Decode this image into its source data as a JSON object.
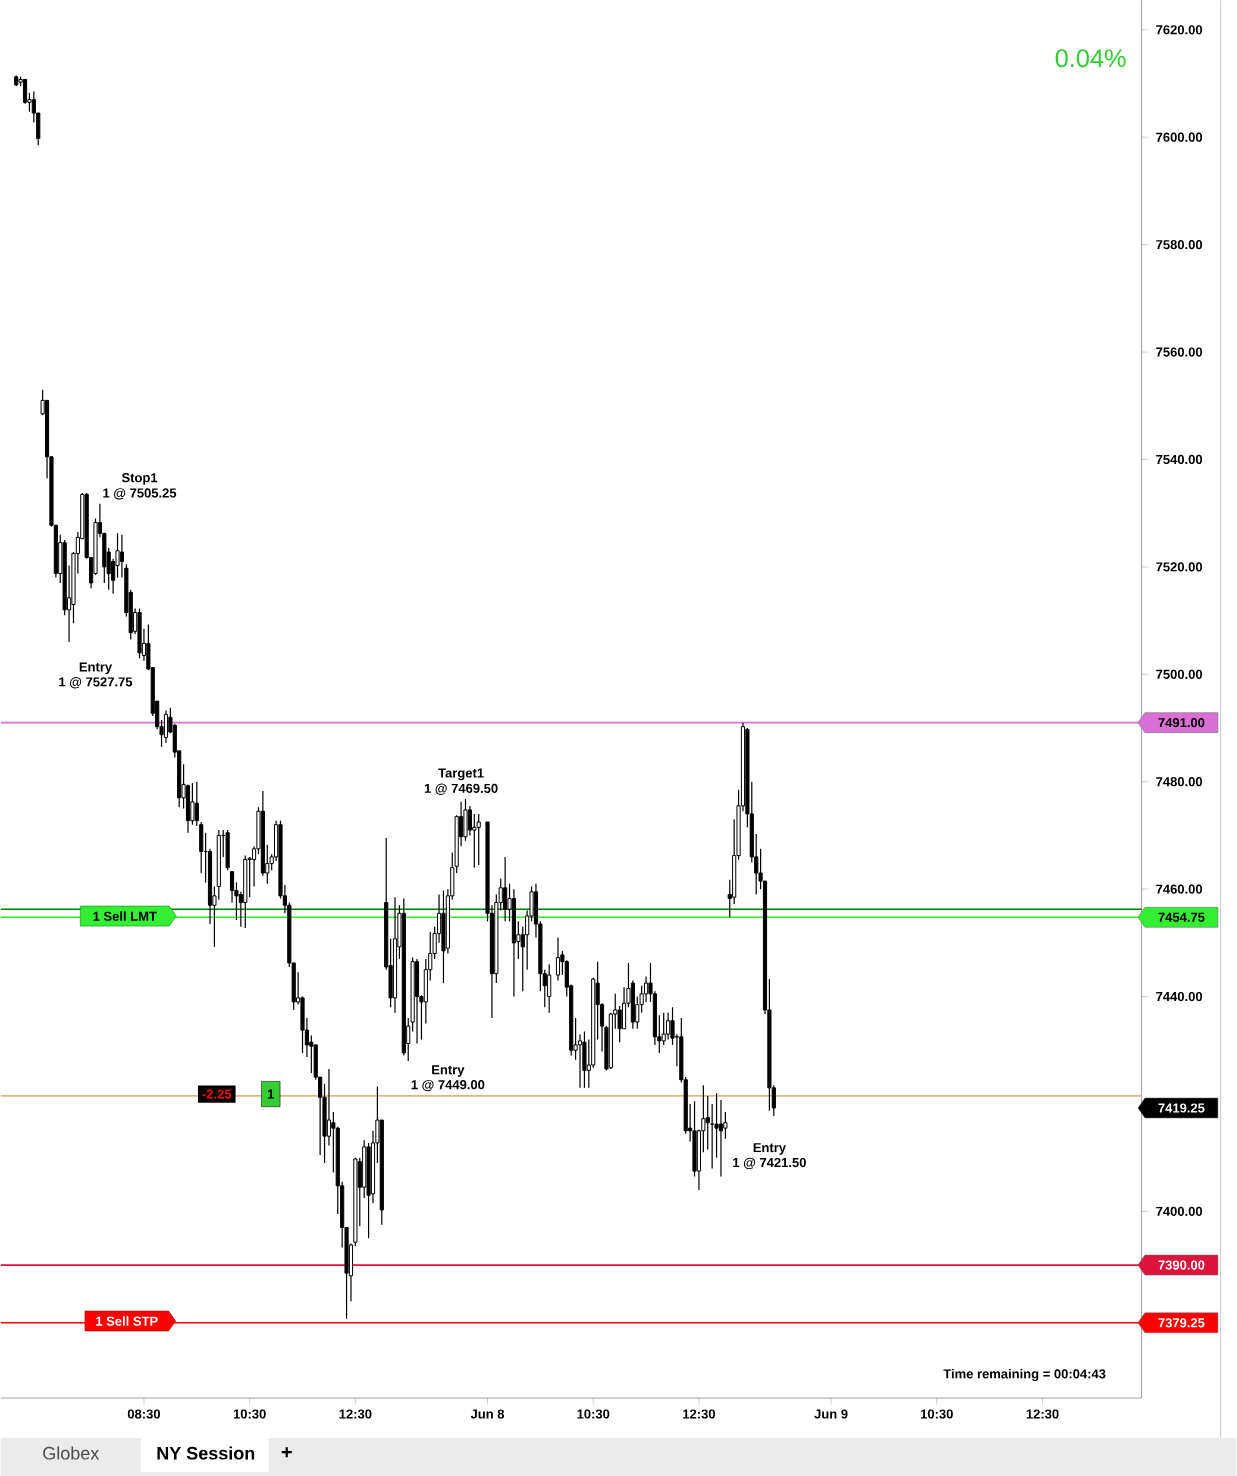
{
  "chart_data": {
    "type": "candlestick",
    "color": "#000000",
    "categories": [
      null,
      null,
      null,
      null,
      null,
      null,
      null,
      null,
      null,
      null,
      null,
      null,
      null,
      null,
      null,
      null,
      null,
      null,
      null,
      null,
      null,
      null,
      null,
      null,
      null,
      null,
      null,
      null,
      null,
      null,
      null,
      null,
      "08:30",
      null,
      null,
      null,
      null,
      null,
      null,
      null,
      null,
      null,
      null,
      null,
      null,
      null,
      null,
      null,
      null,
      null,
      null,
      null,
      null,
      null,
      null,
      null,
      "10:30",
      null,
      null,
      null,
      null,
      null,
      null,
      null,
      null,
      null,
      null,
      null,
      null,
      null,
      null,
      null,
      null,
      null,
      null,
      null,
      null,
      null,
      null,
      null,
      "12:30",
      null,
      null,
      null,
      null,
      null,
      null,
      null,
      null,
      null,
      null,
      null,
      null,
      null,
      null,
      null,
      null,
      null,
      null,
      null,
      null,
      null,
      null,
      null,
      null,
      null,
      null,
      null,
      null,
      null,
      "Jun 8",
      null,
      null,
      null,
      null,
      null,
      null,
      null,
      null,
      null,
      null,
      null,
      null,
      null,
      null,
      null,
      null,
      null,
      null,
      null,
      null,
      null,
      null,
      null,
      "10:30",
      null,
      null,
      null,
      null,
      null,
      null,
      null,
      null,
      null,
      null,
      null,
      null,
      null,
      null,
      null,
      null,
      null,
      null,
      null,
      null,
      null,
      null,
      null,
      "12:30",
      null,
      null,
      null,
      null,
      null,
      null,
      null,
      null,
      null,
      null,
      null,
      null,
      null,
      null,
      null,
      null,
      null,
      null,
      null,
      null,
      null,
      null,
      null,
      null,
      null,
      null,
      null,
      null,
      null,
      "Jun 9",
      null,
      null,
      null,
      null,
      null,
      null,
      null,
      null,
      null,
      null,
      null,
      null,
      null,
      null,
      null,
      null,
      null,
      null,
      null,
      null,
      null,
      null,
      null,
      "10:30",
      null,
      null,
      null,
      null,
      null,
      null,
      null,
      null,
      null,
      null,
      null,
      null,
      null,
      null,
      null,
      null,
      null,
      null,
      null,
      null,
      null,
      null,
      null,
      "12:30",
      null,
      null,
      null,
      null,
      null,
      null,
      null,
      null,
      null,
      null,
      null,
      null,
      null,
      null,
      null,
      null,
      null,
      null,
      null,
      null,
      null,
      null
    ],
    "ohlc": [
      null,
      null,
      null,
      [
        7611.25,
        7611.5,
        7609.5,
        7609.75
      ],
      [
        7610.25,
        7611.25,
        7609.5,
        7610.75
      ],
      [
        7610.75,
        7610.75,
        7606.25,
        7606.5
      ],
      [
        7606.5,
        7608.25,
        7604.75,
        7607.0
      ],
      [
        7607.0,
        7608.5,
        7602.75,
        7604.5
      ],
      [
        7604.5,
        7604.5,
        7598.5,
        7599.75
      ],
      [
        7548.5,
        7553.0,
        7548.25,
        7551.0
      ],
      [
        7551.0,
        7551.0,
        7536.5,
        7540.5
      ],
      [
        7540.5,
        7540.5,
        7527.5,
        7527.75
      ],
      [
        7527.75,
        7527.75,
        7518.0,
        7518.75
      ],
      [
        7518.75,
        7526.0,
        7517.0,
        7524.5
      ],
      [
        7524.5,
        7525.0,
        7511.0,
        7512.0
      ],
      [
        7512.0,
        7520.25,
        7506.0,
        7514.25
      ],
      [
        7513.0,
        7522.75,
        7509.5,
        7522.5
      ],
      [
        7522.5,
        7526.5,
        7518.75,
        7525.5
      ],
      [
        7525.25,
        7533.75,
        7525.25,
        7533.5
      ],
      [
        7533.5,
        7533.75,
        7521.5,
        7521.75
      ],
      [
        7521.75,
        7521.75,
        7516.0,
        7517.0
      ],
      [
        7518.75,
        7529.0,
        7518.5,
        7528.25
      ],
      [
        7528.25,
        7531.75,
        7525.5,
        7526.25
      ],
      [
        7526.25,
        7526.25,
        7517.0,
        7520.0
      ],
      [
        7522.75,
        7523.5,
        7515.75,
        7518.75
      ],
      [
        7521.0,
        7521.5,
        7515.0,
        7517.5
      ],
      [
        7520.25,
        7526.25,
        7518.0,
        7523.0
      ],
      [
        7522.75,
        7526.0,
        7518.0,
        7521.0
      ],
      [
        7519.75,
        7520.5,
        7510.75,
        7511.5
      ],
      [
        7515.25,
        7515.75,
        7506.5,
        7507.75
      ],
      [
        7508.0,
        7512.25,
        7507.5,
        7511.5
      ],
      [
        7511.5,
        7512.25,
        7503.0,
        7504.0
      ],
      [
        7503.5,
        7508.5,
        7502.5,
        7505.75
      ],
      [
        7505.75,
        7509.25,
        7500.75,
        7501.0
      ],
      [
        7501.25,
        7501.25,
        7492.25,
        7492.75
      ],
      [
        7495.0,
        7495.0,
        7489.75,
        7490.25
      ],
      [
        7490.25,
        7491.5,
        7486.5,
        7488.75
      ],
      [
        7488.25,
        7493.25,
        7487.25,
        7492.5
      ],
      [
        7492.0,
        7493.75,
        7489.0,
        7489.25
      ],
      [
        7490.5,
        7490.75,
        7484.5,
        7485.5
      ],
      [
        7485.75,
        7485.75,
        7475.25,
        7477.0
      ],
      [
        7477.0,
        7483.25,
        7475.0,
        7479.5
      ],
      [
        7479.25,
        7479.5,
        7470.5,
        7472.75
      ],
      [
        7472.75,
        7479.75,
        7472.0,
        7476.25
      ],
      [
        7476.0,
        7480.0,
        7471.75,
        7472.75
      ],
      [
        7472.0,
        7472.5,
        7463.0,
        7467.0
      ],
      [
        7467.0,
        7470.5,
        7461.25,
        7467.0
      ],
      [
        7467.0,
        7467.5,
        7453.5,
        7457.0
      ],
      [
        7457.0,
        7460.5,
        7449.25,
        7458.75
      ],
      [
        7460.5,
        7471.0,
        7458.0,
        7470.0
      ],
      [
        7470.0,
        7471.0,
        7466.0,
        7470.0
      ],
      [
        7470.5,
        7471.0,
        7463.5,
        7464.0
      ],
      [
        7463.25,
        7463.25,
        7457.5,
        7459.75
      ],
      [
        7459.75,
        7461.25,
        7454.25,
        7458.75
      ],
      [
        7459.0,
        7459.5,
        7453.0,
        7457.5
      ],
      [
        7457.5,
        7466.25,
        7452.75,
        7465.5
      ],
      [
        7465.5,
        7466.0,
        7458.5,
        7465.75
      ],
      [
        7465.5,
        7468.0,
        7460.5,
        7467.5
      ],
      [
        7467.5,
        7475.25,
        7466.5,
        7474.5
      ],
      [
        7474.5,
        7478.25,
        7462.5,
        7463.0
      ],
      [
        7463.0,
        7468.25,
        7461.0,
        7464.75
      ],
      [
        7464.75,
        7466.5,
        7463.5,
        7466.0
      ],
      [
        7466.0,
        7472.75,
        7465.25,
        7472.0
      ],
      [
        7472.0,
        7472.75,
        7458.25,
        7458.75
      ],
      [
        7458.75,
        7460.75,
        7455.5,
        7457.0
      ],
      [
        7457.0,
        7457.5,
        7445.5,
        7446.25
      ],
      [
        7446.25,
        7446.25,
        7437.5,
        7439.0
      ],
      [
        7439.0,
        7444.5,
        7438.5,
        7439.75
      ],
      [
        7439.75,
        7440.0,
        7429.5,
        7433.75
      ],
      [
        7433.75,
        7436.0,
        7428.75,
        7431.0
      ],
      [
        7431.5,
        7432.75,
        7425.75,
        7430.75
      ],
      [
        7431.0,
        7431.0,
        7424.5,
        7425.0
      ],
      [
        7425.0,
        7425.0,
        7410.5,
        7421.25
      ],
      [
        7421.25,
        7423.75,
        7409.0,
        7414.0
      ],
      [
        7414.0,
        7426.5,
        7412.25,
        7417.0
      ],
      [
        7416.5,
        7418.5,
        7407.25,
        7415.5
      ],
      [
        7415.5,
        7415.75,
        7399.5,
        7404.75
      ],
      [
        7404.75,
        7405.5,
        7393.25,
        7397.0
      ],
      [
        7397.0,
        7397.0,
        7380.0,
        7388.5
      ],
      [
        7388.0,
        7394.0,
        7383.25,
        7393.75
      ],
      [
        7394.25,
        7410.0,
        7393.5,
        7409.75
      ],
      [
        7409.25,
        7410.0,
        7397.25,
        7404.5
      ],
      [
        7404.5,
        7413.25,
        7402.5,
        7412.0
      ],
      [
        7412.0,
        7412.75,
        7395.0,
        7403.0
      ],
      [
        7403.25,
        7415.0,
        7401.5,
        7412.75
      ],
      [
        7412.75,
        7423.25,
        7409.0,
        7417.0
      ],
      [
        7417.0,
        7417.0,
        7397.5,
        7400.25
      ],
      [
        7457.5,
        7469.5,
        7445.0,
        7445.5
      ],
      [
        7445.75,
        7450.75,
        7438.0,
        7439.75
      ],
      [
        7439.75,
        7458.5,
        7437.0,
        7450.75
      ],
      [
        7449.25,
        7457.0,
        7447.0,
        7455.5
      ],
      [
        7455.5,
        7458.25,
        7429.0,
        7429.5
      ],
      [
        7431.25,
        7436.0,
        7428.0,
        7434.5
      ],
      [
        7435.25,
        7447.25,
        7433.5,
        7446.5
      ],
      [
        7446.5,
        7447.0,
        7431.25,
        7440.0
      ],
      [
        7440.0,
        7440.25,
        7432.0,
        7439.0
      ],
      [
        7439.0,
        7447.0,
        7435.0,
        7445.0
      ],
      [
        7445.0,
        7452.0,
        7443.0,
        7448.0
      ],
      [
        7448.0,
        7453.0,
        7447.0,
        7451.75
      ],
      [
        7451.75,
        7459.0,
        7450.0,
        7455.5
      ],
      [
        7455.5,
        7459.75,
        7442.5,
        7448.5
      ],
      [
        7449.0,
        7460.0,
        7448.0,
        7458.75
      ],
      [
        7458.75,
        7466.75,
        7458.0,
        7464.0
      ],
      [
        7464.25,
        7473.75,
        7463.0,
        7473.5
      ],
      [
        7473.5,
        7476.25,
        7468.0,
        7469.75
      ],
      [
        7469.75,
        7476.75,
        7469.0,
        7474.75
      ],
      [
        7474.75,
        7475.5,
        7470.0,
        7471.0
      ],
      [
        7471.0,
        7474.0,
        7464.0,
        7471.5
      ],
      [
        7471.5,
        7474.0,
        7464.5,
        7472.5
      ],
      null,
      [
        7472.5,
        7472.5,
        7454.0,
        7455.5
      ],
      [
        7455.5,
        7457.0,
        7436.0,
        7444.25
      ],
      [
        7444.25,
        7459.0,
        7442.5,
        7457.5
      ],
      [
        7457.5,
        7462.0,
        7456.0,
        7460.25
      ],
      [
        7460.25,
        7466.0,
        7454.0,
        7456.25
      ],
      [
        7456.25,
        7461.0,
        7454.0,
        7458.25
      ],
      [
        7458.25,
        7460.0,
        7440.0,
        7450.0
      ],
      [
        7450.25,
        7454.0,
        7447.0,
        7451.5
      ],
      [
        7451.5,
        7453.0,
        7441.0,
        7449.25
      ],
      [
        7451.5,
        7456.0,
        7445.0,
        7455.0
      ],
      [
        7455.0,
        7460.5,
        7454.0,
        7459.5
      ],
      [
        7459.5,
        7461.0,
        7451.0,
        7453.5
      ],
      [
        7453.5,
        7454.0,
        7441.0,
        7444.25
      ],
      [
        7444.25,
        7445.0,
        7438.0,
        7442.0
      ],
      [
        7440.0,
        7446.0,
        7437.0,
        7444.0
      ],
      null,
      [
        7444.0,
        7451.0,
        7443.0,
        7447.25
      ],
      [
        7447.75,
        7448.5,
        7444.0,
        7446.5
      ],
      [
        7446.5,
        7446.75,
        7440.0,
        7441.75
      ],
      [
        7442.0,
        7442.25,
        7429.0,
        7430.0
      ],
      [
        7430.0,
        7436.0,
        7428.25,
        7431.0
      ],
      [
        7431.0,
        7433.0,
        7423.0,
        7431.75
      ],
      [
        7431.5,
        7433.5,
        7423.0,
        7426.25
      ],
      [
        7426.25,
        7432.0,
        7423.0,
        7427.25
      ],
      [
        7427.25,
        7443.5,
        7426.75,
        7443.25
      ],
      [
        7442.5,
        7446.5,
        7432.0,
        7438.5
      ],
      [
        7438.5,
        7438.75,
        7429.75,
        7434.5
      ],
      [
        7434.25,
        7434.5,
        7426.25,
        7426.5
      ],
      [
        7426.75,
        7437.0,
        7426.5,
        7436.75
      ],
      [
        7436.75,
        7440.5,
        7434.0,
        7437.5
      ],
      [
        7437.5,
        7438.25,
        7431.5,
        7434.0
      ],
      [
        7434.0,
        7441.75,
        7434.0,
        7438.75
      ],
      [
        7438.75,
        7446.25,
        7438.0,
        7441.5
      ],
      [
        7442.5,
        7443.0,
        7434.0,
        7435.25
      ],
      [
        7435.25,
        7440.0,
        7434.0,
        7438.5
      ],
      [
        7438.5,
        7442.0,
        7437.0,
        7440.5
      ],
      [
        7440.5,
        7443.75,
        7439.0,
        7442.5
      ],
      [
        7442.5,
        7446.25,
        7439.0,
        7440.5
      ],
      [
        7440.5,
        7441.0,
        7431.0,
        7432.5
      ],
      [
        7432.5,
        7436.5,
        7429.5,
        7431.75
      ],
      [
        7431.75,
        7437.0,
        7431.0,
        7433.0
      ],
      [
        7433.0,
        7437.0,
        7432.0,
        7435.5
      ],
      [
        7435.5,
        7438.0,
        7431.0,
        7432.25
      ],
      [
        7432.5,
        7433.0,
        7427.0,
        7432.5
      ],
      [
        7432.5,
        7436.0,
        7424.0,
        7424.5
      ],
      [
        7424.5,
        7425.0,
        7414.5,
        7415.0
      ],
      [
        7415.5,
        7420.0,
        7413.0,
        7415.0
      ],
      [
        7415.0,
        7420.5,
        7406.5,
        7407.5
      ],
      [
        7407.5,
        7415.25,
        7404.0,
        7415.0
      ],
      [
        7415.0,
        7423.5,
        7411.0,
        7417.25
      ],
      [
        7417.5,
        7421.5,
        7411.5,
        7416.5
      ],
      [
        7416.25,
        7420.0,
        7408.0,
        7416.25
      ],
      [
        7416.25,
        7422.0,
        7410.0,
        7415.5
      ],
      [
        7416.25,
        7420.75,
        7406.5,
        7415.0
      ],
      [
        7415.5,
        7418.5,
        7413.5,
        7416.5
      ],
      [
        7459.0,
        7461.75,
        7454.75,
        7458.25
      ],
      [
        7458.5,
        7473.0,
        7457.25,
        7466.25
      ],
      [
        7466.25,
        7478.5,
        7465.5,
        7475.5
      ],
      [
        7475.5,
        7491.0,
        7474.5,
        7490.25
      ],
      [
        7489.75,
        7490.0,
        7471.5,
        7474.0
      ],
      [
        7474.0,
        7480.0,
        7465.0,
        7466.0
      ],
      [
        7466.0,
        7470.25,
        7459.0,
        7463.0
      ],
      [
        7463.0,
        7467.5,
        7460.0,
        7461.5
      ],
      [
        7461.5,
        7461.5,
        7436.75,
        7437.5
      ],
      [
        7437.5,
        7443.25,
        7418.75,
        7423.0
      ],
      [
        7423.0,
        7423.5,
        7417.75,
        7419.25
      ],
      null,
      null,
      null,
      null,
      null,
      null,
      null,
      null,
      null,
      null,
      null,
      null,
      null,
      null,
      null,
      null,
      null,
      null,
      null,
      null,
      null,
      null,
      null,
      null,
      null,
      null,
      null,
      null,
      null,
      null,
      null,
      null,
      null,
      null,
      null,
      null,
      null,
      null,
      null,
      null,
      null,
      null,
      null,
      null,
      null,
      null,
      null,
      null,
      null,
      null,
      null,
      null,
      null,
      null,
      null,
      null,
      null,
      null,
      null,
      null,
      null,
      null,
      null,
      null,
      null,
      null,
      null,
      null,
      null,
      null,
      null,
      null,
      null,
      null,
      null,
      null,
      null,
      null,
      null,
      null,
      null,
      null,
      null
    ],
    "ylim": [
      7365.25,
      7625.5
    ],
    "yticks": [
      {
        "value": 7400,
        "label": "7400.00"
      },
      {
        "value": 7420,
        "label": null
      },
      {
        "value": 7440,
        "label": "7440.00"
      },
      {
        "value": 7460,
        "label": "7460.00"
      },
      {
        "value": 7480,
        "label": "7480.00"
      },
      {
        "value": 7500,
        "label": "7500.00"
      },
      {
        "value": 7520,
        "label": "7520.00"
      },
      {
        "value": 7540,
        "label": "7540.00"
      },
      {
        "value": 7560,
        "label": "7560.00"
      },
      {
        "value": 7580,
        "label": "7580.00"
      },
      {
        "value": 7600,
        "label": "7600.00"
      },
      {
        "value": 7620,
        "label": "7620.00"
      }
    ],
    "ref_lines": [
      {
        "axis": "y",
        "value": 7491.0,
        "label": "7491.00",
        "color": "#da70d6"
      },
      {
        "axis": "y",
        "value": 7456.25,
        "label": null,
        "color": "#008000"
      },
      {
        "axis": "y",
        "value": 7454.75,
        "label": "7454.75",
        "color": "#33ee33"
      },
      {
        "axis": "y",
        "value": 7421.5,
        "label": null,
        "color": "#deb887"
      },
      {
        "axis": "y",
        "value": 7390.0,
        "label": "7390.00",
        "color": "#dc143c"
      },
      {
        "axis": "y",
        "value": 7379.25,
        "label": "7379.25",
        "color": "#ff0000"
      }
    ],
    "annotations": [
      "Entry",
      "1 @ 7527.75",
      "Stop1",
      "1 @ 7505.25",
      "Entry",
      "1 @ 7449.00",
      "Target1",
      "1 @ 7469.50",
      "Entry",
      "1 @ 7421.50",
      "7419.25",
      "0.04%",
      "Time remaining = 00:04:43",
      "1 Sell LMT",
      "1 Sell STP",
      "-2.25",
      "1",
      "Globex",
      "NY Session",
      "+"
    ]
  }
}
